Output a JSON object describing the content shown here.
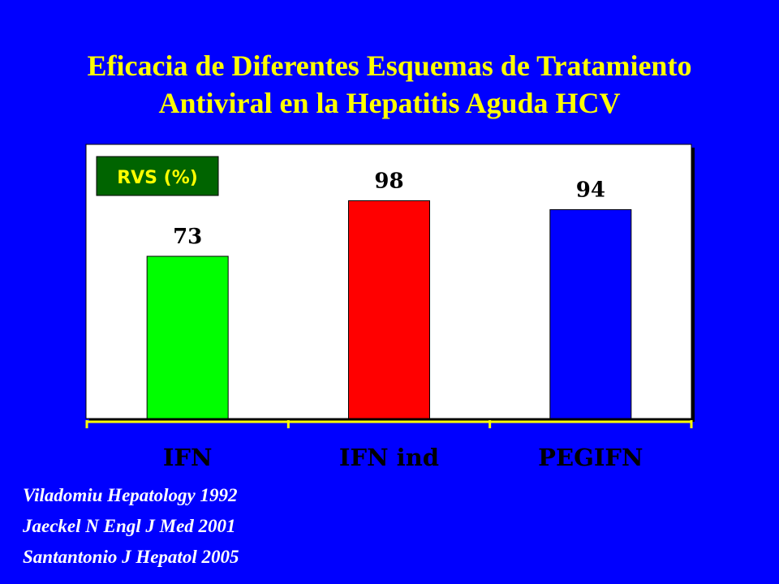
{
  "title": {
    "line1": "Eficacia de Diferentes Esquemas de Tratamiento",
    "line2": "Antiviral en la Hepatitis Aguda HCV"
  },
  "references": [
    "Viladomiu Hepatology 1992",
    "Jaeckel N Engl J Med 2001",
    "Santantonio J Hepatol 2005"
  ],
  "colors": {
    "background": "#0000ff",
    "title": "#ffff00",
    "plot_area": "#ffffff",
    "label_box": "#006400",
    "label_text": "#ffff00",
    "reference_text": "#ffffff"
  },
  "chart_data": {
    "type": "bar",
    "categories": [
      "IFN",
      "IFN ind",
      "PEGIFN"
    ],
    "values": [
      73,
      98,
      94
    ],
    "data_labels": [
      "73",
      "98",
      "94"
    ],
    "bar_colors": [
      "#00ff00",
      "#ff0000",
      "#0000ff"
    ],
    "ylabel": "RVS (%)",
    "xlabel": "",
    "ylim": [
      0,
      100
    ],
    "grid": false,
    "legend": "none"
  }
}
